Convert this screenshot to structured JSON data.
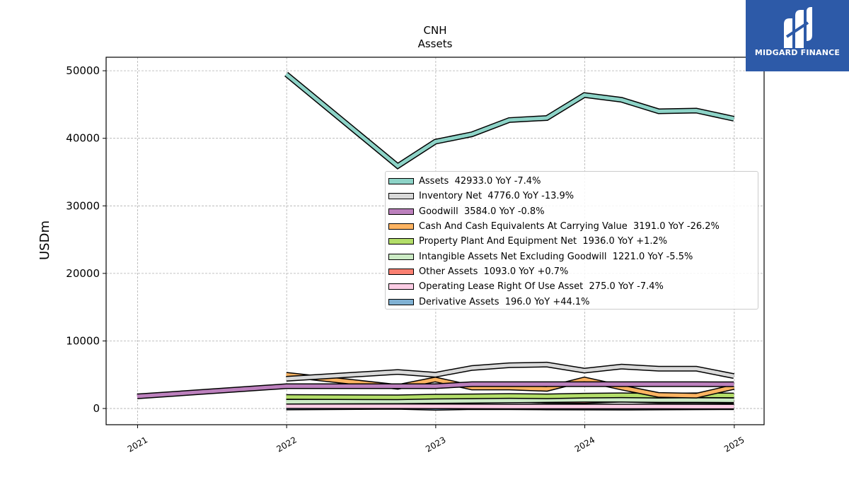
{
  "chart_data": {
    "type": "line",
    "title": "CNH",
    "subtitle": "Assets",
    "xlabel": "",
    "ylabel": "USDm",
    "xlim": [
      "2020-10-16",
      "2025-03-15"
    ],
    "ylim": [
      -2400,
      52000
    ],
    "x_ticks": [
      "2021",
      "2022",
      "2023",
      "2024",
      "2025"
    ],
    "y_ticks": [
      0,
      10000,
      20000,
      30000,
      40000,
      50000
    ],
    "grid": true,
    "legend_position": "center-right",
    "series": [
      {
        "name": "Assets",
        "legend_label": "Assets  42933.0 YoY -7.4%",
        "color": "#8dd3c7",
        "x": [
          "2021-12-31",
          "2022-09-30",
          "2022-12-31",
          "2023-03-31",
          "2023-06-30",
          "2023-09-30",
          "2023-12-31",
          "2024-03-31",
          "2024-06-30",
          "2024-09-30",
          "2024-12-31"
        ],
        "values": [
          49500,
          35900,
          39500,
          40600,
          42700,
          43000,
          46400,
          45700,
          44000,
          44100,
          42900
        ]
      },
      {
        "name": "Inventory Net",
        "legend_label": "Inventory Net  4776.0 YoY -13.9%",
        "color": "#d9d9d9",
        "x": [
          "2021-12-31",
          "2022-09-30",
          "2022-12-31",
          "2023-03-31",
          "2023-06-30",
          "2023-09-30",
          "2023-12-31",
          "2024-03-31",
          "2024-06-30",
          "2024-09-30",
          "2024-12-31"
        ],
        "values": [
          4400,
          5400,
          5000,
          6000,
          6400,
          6500,
          5600,
          6200,
          5900,
          5900,
          4800
        ]
      },
      {
        "name": "Goodwill",
        "legend_label": "Goodwill  3584.0 YoY -0.8%",
        "color": "#bc80bd",
        "x": [
          "2020-12-31",
          "2021-12-31",
          "2022-09-30",
          "2022-12-31",
          "2023-03-31",
          "2023-06-30",
          "2023-09-30",
          "2023-12-31",
          "2024-03-31",
          "2024-06-30",
          "2024-09-30",
          "2024-12-31"
        ],
        "values": [
          1800,
          3300,
          3300,
          3300,
          3600,
          3600,
          3600,
          3600,
          3600,
          3600,
          3600,
          3584
        ]
      },
      {
        "name": "Cash And Cash Equivalents At Carrying Value",
        "legend_label": "Cash And Cash Equivalents At Carrying Value  3191.0 YoY -26.2%",
        "color": "#fdb462",
        "x": [
          "2021-12-31",
          "2022-09-30",
          "2022-12-31",
          "2023-03-31",
          "2023-06-30",
          "2023-09-30",
          "2023-12-31",
          "2024-03-31",
          "2024-06-30",
          "2024-09-30",
          "2024-12-31"
        ],
        "values": [
          5000,
          3200,
          4300,
          3100,
          3100,
          2900,
          4300,
          3100,
          2000,
          1900,
          3191
        ]
      },
      {
        "name": "Property Plant And Equipment Net",
        "legend_label": "Property Plant And Equipment Net  1936.0 YoY +1.2%",
        "color": "#b3de69",
        "x": [
          "2021-12-31",
          "2022-09-30",
          "2022-12-31",
          "2023-03-31",
          "2023-06-30",
          "2023-09-30",
          "2023-12-31",
          "2024-03-31",
          "2024-06-30",
          "2024-09-30",
          "2024-12-31"
        ],
        "values": [
          1700,
          1650,
          1750,
          1800,
          1850,
          1800,
          1900,
          1950,
          1900,
          1950,
          1936
        ]
      },
      {
        "name": "Intangible Assets Net Excluding Goodwill",
        "legend_label": "Intangible Assets Net Excluding Goodwill  1221.0 YoY -5.5%",
        "color": "#ccebc5",
        "x": [
          "2021-12-31",
          "2022-09-30",
          "2022-12-31",
          "2023-03-31",
          "2023-06-30",
          "2023-09-30",
          "2023-12-31",
          "2024-03-31",
          "2024-06-30",
          "2024-09-30",
          "2024-12-31"
        ],
        "values": [
          1000,
          1050,
          1100,
          1150,
          1200,
          1250,
          1300,
          1300,
          1250,
          1250,
          1221
        ]
      },
      {
        "name": "Other Assets",
        "legend_label": "Other Assets  1093.0 YoY +0.7%",
        "color": "#fb8072",
        "x": [
          "2021-12-31",
          "2022-09-30",
          "2022-12-31",
          "2023-03-31",
          "2023-06-30",
          "2023-09-30",
          "2023-12-31",
          "2024-03-31",
          "2024-06-30",
          "2024-09-30",
          "2024-12-31"
        ],
        "values": [
          1600,
          1100,
          1250,
          1400,
          1300,
          1150,
          1100,
          1300,
          1150,
          1150,
          1093
        ]
      },
      {
        "name": "Operating Lease Right Of Use Asset",
        "legend_label": "Operating Lease Right Of Use Asset  275.0 YoY -7.4%",
        "color": "#fccde5",
        "x": [
          "2021-12-31",
          "2022-09-30",
          "2022-12-31",
          "2023-03-31",
          "2023-06-30",
          "2023-09-30",
          "2023-12-31",
          "2024-03-31",
          "2024-06-30",
          "2024-09-30",
          "2024-12-31"
        ],
        "values": [
          350,
          330,
          320,
          310,
          300,
          300,
          297,
          290,
          285,
          280,
          275
        ]
      },
      {
        "name": "Derivative Assets",
        "legend_label": "Derivative Assets  196.0 YoY +44.1%",
        "color": "#80b1d3",
        "x": [
          "2021-12-31",
          "2022-09-30",
          "2022-12-31",
          "2023-03-31",
          "2023-06-30",
          "2023-09-30",
          "2023-12-31",
          "2024-03-31",
          "2024-06-30",
          "2024-09-30",
          "2024-12-31"
        ],
        "values": [
          150,
          250,
          100,
          200,
          180,
          150,
          136,
          120,
          150,
          170,
          196
        ]
      }
    ]
  },
  "logo": {
    "text": "MIDGARD FINANCE",
    "color": "#2d5aa8"
  }
}
